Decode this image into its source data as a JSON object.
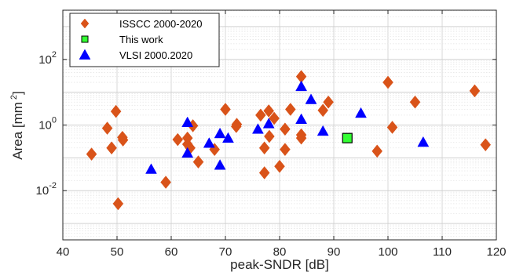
{
  "chart_data": {
    "type": "scatter",
    "title": "",
    "xlabel": "peak-SNDR [dB]",
    "ylabel": "Area [mm",
    "ylabel_superscript": "2",
    "ylabel_suffix": "]",
    "xlim": [
      40,
      120
    ],
    "ylim_log10": [
      -3.5,
      3.5
    ],
    "y_scale": "log",
    "x_ticks": [
      40,
      50,
      60,
      70,
      80,
      90,
      100,
      110,
      120
    ],
    "x_tick_labels": [
      "40",
      "50",
      "60",
      "70",
      "80",
      "90",
      "100",
      "110",
      "120"
    ],
    "y_ticks_log10": [
      -2,
      0,
      2
    ],
    "y_tick_base": [
      "10",
      "10",
      "10"
    ],
    "y_tick_exponents": [
      "-2",
      "0",
      "2"
    ],
    "grid": true,
    "minor_grid": true,
    "legend_position": "top-left",
    "series": [
      {
        "name": "ISSCC 2000-2020",
        "marker": "diamond",
        "color": "#D95319",
        "points": [
          [
            45.3,
            0.13
          ],
          [
            48.2,
            0.8
          ],
          [
            49.0,
            0.2
          ],
          [
            49.8,
            2.6
          ],
          [
            50.2,
            0.004
          ],
          [
            51.0,
            0.42
          ],
          [
            51.1,
            0.35
          ],
          [
            59.0,
            0.018
          ],
          [
            61.2,
            0.36
          ],
          [
            63.0,
            0.4
          ],
          [
            63.0,
            0.26
          ],
          [
            63.5,
            0.2
          ],
          [
            64.0,
            0.95
          ],
          [
            65.0,
            0.075
          ],
          [
            68.0,
            0.18
          ],
          [
            70.0,
            3.0
          ],
          [
            72.0,
            0.9
          ],
          [
            72.1,
            1.05
          ],
          [
            76.5,
            2.0
          ],
          [
            77.2,
            0.035
          ],
          [
            77.2,
            0.2
          ],
          [
            78.0,
            2.7
          ],
          [
            78.1,
            0.45
          ],
          [
            79.0,
            1.6
          ],
          [
            80.0,
            0.055
          ],
          [
            81.0,
            0.18
          ],
          [
            81.0,
            0.75
          ],
          [
            82.0,
            3.0
          ],
          [
            84.0,
            30.0
          ],
          [
            84.0,
            0.5
          ],
          [
            84.0,
            0.4
          ],
          [
            88.0,
            2.8
          ],
          [
            89.0,
            5.0
          ],
          [
            98.0,
            0.16
          ],
          [
            100.0,
            20.0
          ],
          [
            100.8,
            0.85
          ],
          [
            105.0,
            5.0
          ],
          [
            116.0,
            11.0
          ],
          [
            118.0,
            0.25
          ]
        ]
      },
      {
        "name": "This work",
        "marker": "square",
        "color": "#33FF33",
        "points": [
          [
            92.5,
            0.4
          ]
        ]
      },
      {
        "name": "VLSI 2000.2020",
        "marker": "triangle",
        "color": "#0000FF",
        "points": [
          [
            56.3,
            0.045
          ],
          [
            63.0,
            1.2
          ],
          [
            63.0,
            0.14
          ],
          [
            67.0,
            0.28
          ],
          [
            69.0,
            0.55
          ],
          [
            69.0,
            0.06
          ],
          [
            70.5,
            0.4
          ],
          [
            76.0,
            0.75
          ],
          [
            78.0,
            1.1
          ],
          [
            84.0,
            15.0
          ],
          [
            84.0,
            1.5
          ],
          [
            85.8,
            6.0
          ],
          [
            88.0,
            0.65
          ],
          [
            95.0,
            2.3
          ],
          [
            106.5,
            0.3
          ]
        ]
      }
    ]
  }
}
